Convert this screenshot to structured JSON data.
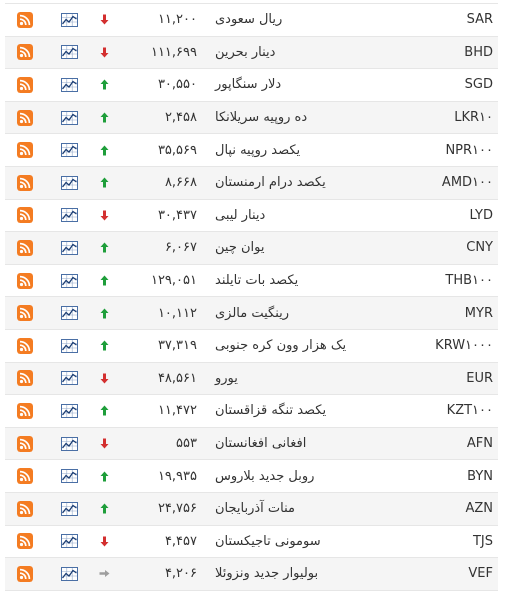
{
  "colors": {
    "rss": "#f47c22",
    "chart": "#4a6fa5",
    "up": "#1e9e3a",
    "down": "#d32f2f",
    "neutral": "#9e9e9e"
  },
  "rows": [
    {
      "code": "SAR",
      "name": "ریال سعودی",
      "price": "۱۱,۲۰۰",
      "trend": "down"
    },
    {
      "code": "BHD",
      "name": "دینار بحرین",
      "price": "۱۱۱,۶۹۹",
      "trend": "down"
    },
    {
      "code": "SGD",
      "name": "دلار سنگاپور",
      "price": "۳۰,۵۵۰",
      "trend": "up"
    },
    {
      "code": "LKR۱۰",
      "name": "ده روپیه سریلانکا",
      "price": "۲,۴۵۸",
      "trend": "up"
    },
    {
      "code": "NPR۱۰۰",
      "name": "یکصد روپیه نپال",
      "price": "۳۵,۵۶۹",
      "trend": "up"
    },
    {
      "code": "AMD۱۰۰",
      "name": "یکصد درام ارمنستان",
      "price": "۸,۶۶۸",
      "trend": "up"
    },
    {
      "code": "LYD",
      "name": "دینار لیبی",
      "price": "۳۰,۴۳۷",
      "trend": "down"
    },
    {
      "code": "CNY",
      "name": "یوان چین",
      "price": "۶,۰۶۷",
      "trend": "up"
    },
    {
      "code": "THB۱۰۰",
      "name": "یکصد بات تایلند",
      "price": "۱۲۹,۰۵۱",
      "trend": "up"
    },
    {
      "code": "MYR",
      "name": "رینگیت مالزی",
      "price": "۱۰,۱۱۲",
      "trend": "up"
    },
    {
      "code": "KRW۱۰۰۰",
      "name": "یک هزار وون کره جنوبی",
      "price": "۳۷,۳۱۹",
      "trend": "up"
    },
    {
      "code": "EUR",
      "name": "یورو",
      "price": "۴۸,۵۶۱",
      "trend": "down"
    },
    {
      "code": "KZT۱۰۰",
      "name": "یکصد تنگه قزاقستان",
      "price": "۱۱,۴۷۲",
      "trend": "up"
    },
    {
      "code": "AFN",
      "name": "افغانی افغانستان",
      "price": "۵۵۳",
      "trend": "down"
    },
    {
      "code": "BYN",
      "name": "روبل جدید بلاروس",
      "price": "۱۹,۹۳۵",
      "trend": "up"
    },
    {
      "code": "AZN",
      "name": "منات آذربایجان",
      "price": "۲۴,۷۵۶",
      "trend": "up"
    },
    {
      "code": "TJS",
      "name": "سومونی تاجیکستان",
      "price": "۴,۴۵۷",
      "trend": "down"
    },
    {
      "code": "VEF",
      "name": "بولیوار جدید ونزوئلا",
      "price": "۴,۲۰۶",
      "trend": "neutral"
    }
  ]
}
